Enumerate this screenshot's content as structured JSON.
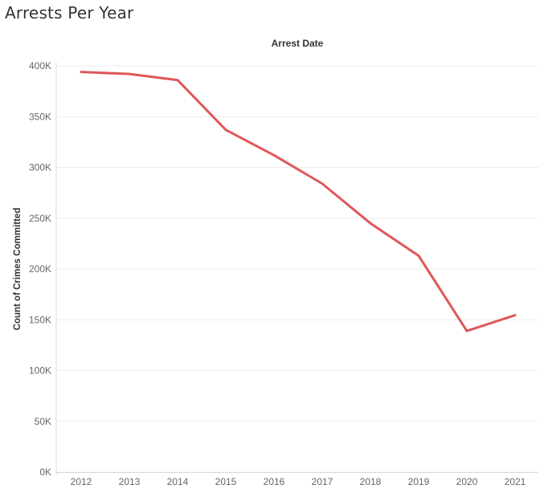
{
  "page": {
    "title": "Arrests Per Year"
  },
  "chart_data": {
    "type": "line",
    "title": "Arrests Per Year",
    "xlabel": "Arrest Date",
    "ylabel": "Count of Crimes Committed",
    "categories": [
      "2012",
      "2013",
      "2014",
      "2015",
      "2016",
      "2017",
      "2018",
      "2019",
      "2020",
      "2021"
    ],
    "series": [
      {
        "name": "Count of Crimes Committed",
        "values": [
          394000,
          392000,
          386000,
          337000,
          312000,
          284000,
          245000,
          213000,
          139000,
          154500
        ]
      }
    ],
    "ylim": [
      0,
      400000
    ],
    "yticks": [
      0,
      50000,
      100000,
      150000,
      200000,
      250000,
      300000,
      350000,
      400000
    ],
    "ytick_labels": [
      "0K",
      "50K",
      "100K",
      "150K",
      "200K",
      "250K",
      "300K",
      "350K",
      "400K"
    ],
    "grid": true,
    "line_color": "#e05759"
  }
}
